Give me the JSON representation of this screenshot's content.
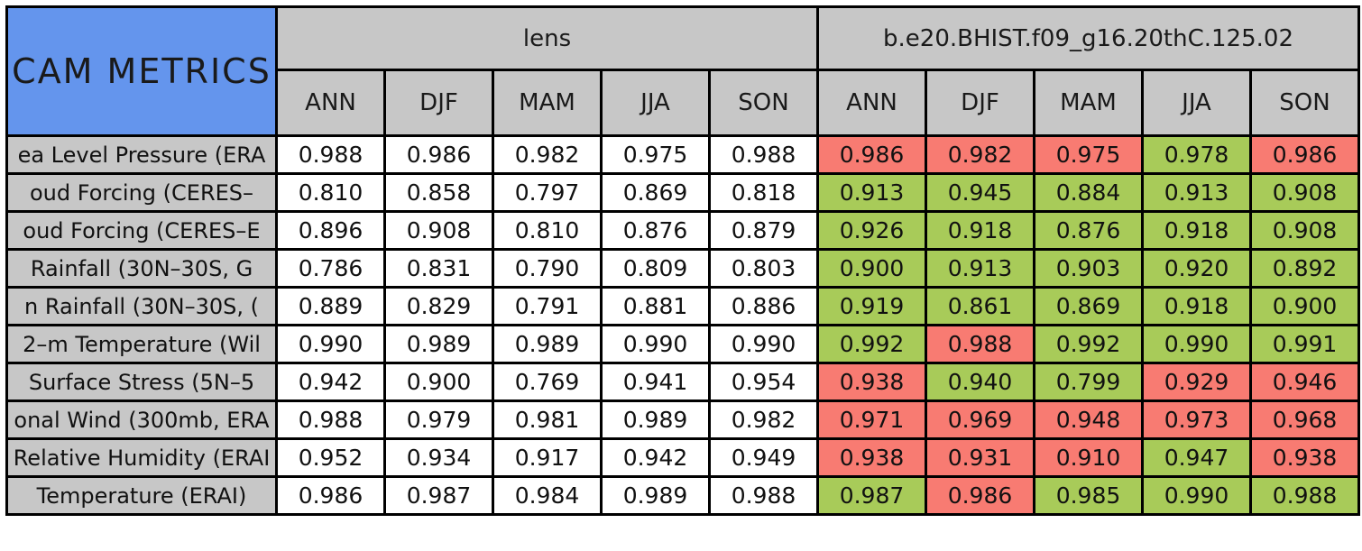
{
  "title": "CAM METRICS",
  "colors": {
    "blue": "#6495ED",
    "gray": "#C7C7C7",
    "red": "#F87B72",
    "green": "#A8CB59",
    "border": "#000000",
    "cell_white": "#FFFFFF"
  },
  "chart_data": {
    "type": "table",
    "title": "CAM METRICS",
    "column_groups": {
      "0": "lens",
      "1": "b.e20.BHIST.f09_g16.20thC.125.02"
    },
    "seasons": [
      "ANN",
      "DJF",
      "MAM",
      "JJA",
      "SON"
    ],
    "rows": [
      {
        "label": "ea Level Pressure (ERA",
        "lens": [
          "0.988",
          "0.986",
          "0.982",
          "0.975",
          "0.988"
        ],
        "case": [
          "0.986",
          "0.982",
          "0.975",
          "0.978",
          "0.986"
        ],
        "case_colors": [
          "red",
          "red",
          "red",
          "green",
          "red"
        ]
      },
      {
        "label": "oud Forcing (CERES–",
        "lens": [
          "0.810",
          "0.858",
          "0.797",
          "0.869",
          "0.818"
        ],
        "case": [
          "0.913",
          "0.945",
          "0.884",
          "0.913",
          "0.908"
        ],
        "case_colors": [
          "green",
          "green",
          "green",
          "green",
          "green"
        ]
      },
      {
        "label": "oud Forcing (CERES–E",
        "lens": [
          "0.896",
          "0.908",
          "0.810",
          "0.876",
          "0.879"
        ],
        "case": [
          "0.926",
          "0.918",
          "0.876",
          "0.918",
          "0.908"
        ],
        "case_colors": [
          "green",
          "green",
          "green",
          "green",
          "green"
        ]
      },
      {
        "label": "Rainfall (30N–30S, G",
        "lens": [
          "0.786",
          "0.831",
          "0.790",
          "0.809",
          "0.803"
        ],
        "case": [
          "0.900",
          "0.913",
          "0.903",
          "0.920",
          "0.892"
        ],
        "case_colors": [
          "green",
          "green",
          "green",
          "green",
          "green"
        ]
      },
      {
        "label": "n Rainfall (30N–30S, (",
        "lens": [
          "0.889",
          "0.829",
          "0.791",
          "0.881",
          "0.886"
        ],
        "case": [
          "0.919",
          "0.861",
          "0.869",
          "0.918",
          "0.900"
        ],
        "case_colors": [
          "green",
          "green",
          "green",
          "green",
          "green"
        ]
      },
      {
        "label": "2–m Temperature (Wil",
        "lens": [
          "0.990",
          "0.989",
          "0.989",
          "0.990",
          "0.990"
        ],
        "case": [
          "0.992",
          "0.988",
          "0.992",
          "0.990",
          "0.991"
        ],
        "case_colors": [
          "green",
          "red",
          "green",
          "green",
          "green"
        ]
      },
      {
        "label": "Surface Stress (5N–5",
        "lens": [
          "0.942",
          "0.900",
          "0.769",
          "0.941",
          "0.954"
        ],
        "case": [
          "0.938",
          "0.940",
          "0.799",
          "0.929",
          "0.946"
        ],
        "case_colors": [
          "red",
          "green",
          "green",
          "red",
          "red"
        ]
      },
      {
        "label": "onal Wind (300mb, ERA",
        "lens": [
          "0.988",
          "0.979",
          "0.981",
          "0.989",
          "0.982"
        ],
        "case": [
          "0.971",
          "0.969",
          "0.948",
          "0.973",
          "0.968"
        ],
        "case_colors": [
          "red",
          "red",
          "red",
          "red",
          "red"
        ]
      },
      {
        "label": "Relative Humidity (ERAI",
        "lens": [
          "0.952",
          "0.934",
          "0.917",
          "0.942",
          "0.949"
        ],
        "case": [
          "0.938",
          "0.931",
          "0.910",
          "0.947",
          "0.938"
        ],
        "case_colors": [
          "red",
          "red",
          "red",
          "green",
          "red"
        ]
      },
      {
        "label": "Temperature (ERAI)",
        "lens": [
          "0.986",
          "0.987",
          "0.984",
          "0.989",
          "0.988"
        ],
        "case": [
          "0.987",
          "0.986",
          "0.985",
          "0.990",
          "0.988"
        ],
        "case_colors": [
          "green",
          "red",
          "green",
          "green",
          "green"
        ]
      }
    ]
  }
}
